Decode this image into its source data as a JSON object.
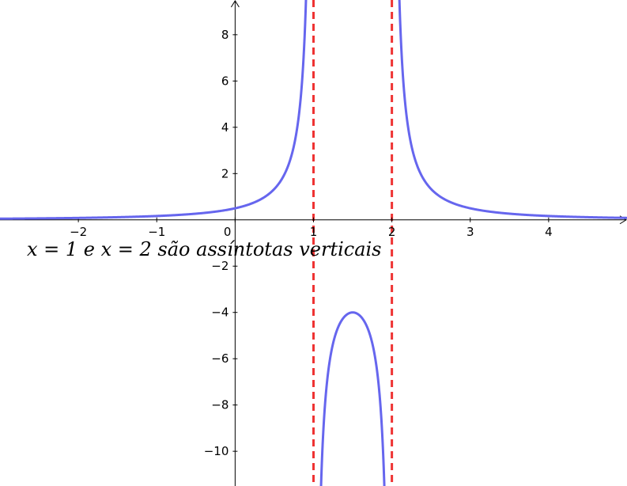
{
  "chart_data": {
    "type": "line",
    "function": "1/((x-1)(x-2))",
    "xlim": [
      -3,
      5
    ],
    "ylim": [
      -11.5,
      9.5
    ],
    "x_ticks": [
      -2,
      -1,
      0,
      1,
      2,
      3,
      4
    ],
    "x_tick_labels": [
      "−2",
      "−1",
      "0",
      "1",
      "2",
      "3",
      "4"
    ],
    "y_ticks": [
      8,
      6,
      4,
      2,
      -2,
      -4,
      -6,
      -8,
      -10
    ],
    "y_tick_labels": [
      "8",
      "6",
      "4",
      "2",
      "−2",
      "−4",
      "−6",
      "−8",
      "−10"
    ],
    "asymptotes": [
      1,
      2
    ],
    "grid": false,
    "series": [
      {
        "color": "#6666ee",
        "points": [
          [
            -3,
            0.05
          ],
          [
            -2,
            0.0833
          ],
          [
            -1,
            0.1667
          ],
          [
            0,
            0.5
          ],
          [
            0.5,
            1.3333
          ],
          [
            0.8,
            4.1667
          ],
          [
            0.9,
            9.0909
          ],
          [
            1.1,
            -11.1111
          ],
          [
            1.2,
            -6.25
          ],
          [
            1.3,
            -4.7619
          ],
          [
            1.5,
            -4
          ],
          [
            1.7,
            -4.7619
          ],
          [
            1.8,
            -6.25
          ],
          [
            1.9,
            -11.1111
          ],
          [
            2.1,
            9.0909
          ],
          [
            2.2,
            4.1667
          ],
          [
            2.5,
            1.3333
          ],
          [
            3,
            0.5
          ],
          [
            4,
            0.1667
          ],
          [
            5,
            0.0833
          ]
        ]
      }
    ],
    "asymptote_color": "#ee3333",
    "axis_color": "#000000",
    "annotation": "x = 1 e x = 2 são assíntotas verticais"
  }
}
